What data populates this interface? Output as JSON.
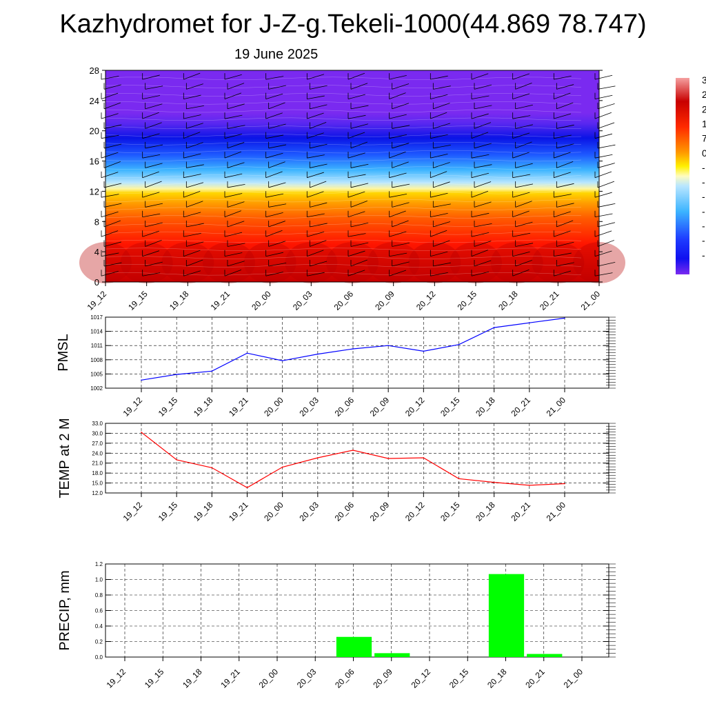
{
  "title": "Kazhydromet for J-Z-g.Tekeli-1000(44.869 78.747)",
  "subtitle": "19 June 2025",
  "time_labels": [
    "19_12",
    "19_15",
    "19_18",
    "19_21",
    "20_00",
    "20_03",
    "20_06",
    "20_09",
    "20_12",
    "20_15",
    "20_18",
    "20_21",
    "21_00"
  ],
  "colors": {
    "pressure_line": "#0000ff",
    "temperature_line": "#ff0000",
    "precip_bars": "#00ff00",
    "grid": "#000000"
  },
  "chart_data": [
    {
      "type": "heatmap",
      "name": "vertical-profile",
      "y_ticks": [
        0,
        4,
        8,
        12,
        16,
        20,
        24,
        28
      ],
      "ylim": [
        0,
        28
      ],
      "x": [
        "19_12",
        "19_15",
        "19_18",
        "19_21",
        "20_00",
        "20_03",
        "20_06",
        "20_09",
        "20_12",
        "20_15",
        "20_18",
        "20_21",
        "21_00"
      ],
      "colorbar_visible_labels": [
        "3",
        "2",
        "2",
        "1",
        "7",
        "0",
        "-",
        "-",
        "-",
        "-",
        "-",
        "-",
        "-"
      ],
      "notes": "filled temperature contours with wind barbs; colorbar partially cut off at right edge"
    },
    {
      "type": "line",
      "name": "pmsl",
      "ylabel": "PMSL",
      "x": [
        "19_12",
        "19_15",
        "19_18",
        "19_21",
        "20_00",
        "20_03",
        "20_06",
        "20_09",
        "20_12",
        "20_15",
        "20_18",
        "20_21",
        "21_00"
      ],
      "values": [
        1003.7,
        1004.9,
        1005.6,
        1009.4,
        1007.8,
        1009.2,
        1010.3,
        1011.0,
        1009.8,
        1011.2,
        1014.8,
        1015.8,
        1016.8
      ],
      "ylim": [
        1002,
        1017
      ],
      "y_ticks": [
        "1002",
        "1005",
        "1008",
        "1011",
        "1014",
        "1017"
      ],
      "grid": true
    },
    {
      "type": "line",
      "name": "temperature",
      "ylabel": "TEMP at 2 M",
      "x": [
        "19_12",
        "19_15",
        "19_18",
        "19_21",
        "20_00",
        "20_03",
        "20_06",
        "20_09",
        "20_12",
        "20_15",
        "20_18",
        "20_21",
        "21_00"
      ],
      "values": [
        30.3,
        22.0,
        19.6,
        13.6,
        19.8,
        22.6,
        24.9,
        22.4,
        22.6,
        16.3,
        15.2,
        14.3,
        14.8
      ],
      "ylim": [
        12,
        33
      ],
      "y_ticks": [
        "12.0",
        "15.0",
        "18.0",
        "21.0",
        "24.0",
        "27.0",
        "30.0",
        "33.0"
      ],
      "grid": true
    },
    {
      "type": "bar",
      "name": "precipitation",
      "ylabel": "PRECIP, mm",
      "x": [
        "19_12",
        "19_15",
        "19_18",
        "19_21",
        "20_00",
        "20_03",
        "20_06",
        "20_09",
        "20_12",
        "20_15",
        "20_18",
        "20_21",
        "21_00"
      ],
      "values": [
        0,
        0,
        0,
        0,
        0,
        0,
        0.26,
        0.05,
        0,
        0,
        1.07,
        0.04,
        0
      ],
      "ylim": [
        0,
        1.2
      ],
      "y_ticks": [
        "0.0",
        "0.2",
        "0.4",
        "0.6",
        "0.8",
        "1.0",
        "1.2"
      ],
      "grid": true
    }
  ]
}
